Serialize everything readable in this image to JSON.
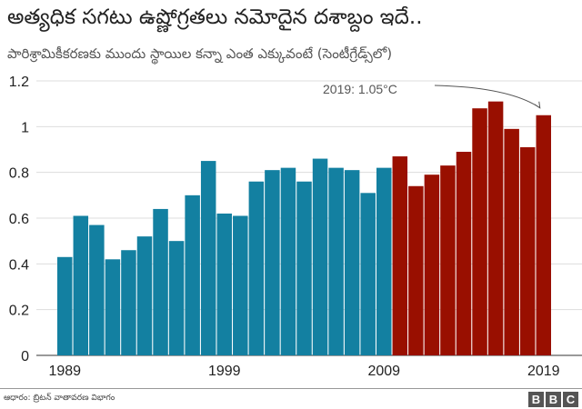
{
  "chart_data": {
    "type": "bar",
    "title": "అత్యధిక సగటు ఉష్ణోగ్రతలు నమోదైన దశాబ్దం ఇదే..",
    "subtitle": "పారిశ్రామికీకరణకు ముందు స్థాయిల కన్నా ఎంత ఎక్కువంటే (సెంటీగ్రేడ్స్‌లో)",
    "categories": [
      1989,
      1990,
      1991,
      1992,
      1993,
      1994,
      1995,
      1996,
      1997,
      1998,
      1999,
      2000,
      2001,
      2002,
      2003,
      2004,
      2005,
      2006,
      2007,
      2008,
      2009,
      2010,
      2011,
      2012,
      2013,
      2014,
      2015,
      2016,
      2017,
      2018,
      2019
    ],
    "values": [
      0.43,
      0.61,
      0.57,
      0.42,
      0.46,
      0.52,
      0.64,
      0.5,
      0.7,
      0.85,
      0.62,
      0.61,
      0.76,
      0.81,
      0.82,
      0.76,
      0.86,
      0.82,
      0.81,
      0.71,
      0.82,
      0.87,
      0.74,
      0.79,
      0.83,
      0.89,
      1.08,
      1.11,
      0.99,
      0.91,
      1.05
    ],
    "colors": {
      "before_2010": "#1380A1",
      "from_2010": "#990F00"
    },
    "ylim": [
      0,
      1.2
    ],
    "yticks": [
      "0",
      "0.2",
      "0.4",
      "0.6",
      "0.8",
      "1",
      "1.2"
    ],
    "xticks": [
      "1989",
      "1999",
      "2009",
      "2019"
    ],
    "grid": true,
    "annotation": "2019: 1.05°C"
  },
  "footer": {
    "source": "ఆధారం: బ్రిటన్ వాతావరణ విభాగం",
    "logo": "BBC"
  }
}
